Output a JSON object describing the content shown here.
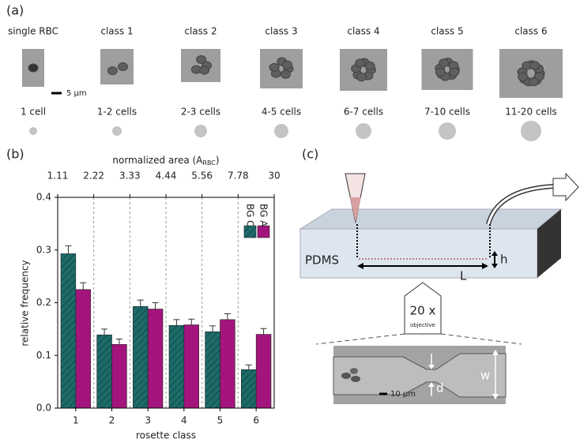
{
  "panel_a": {
    "label": "(a)",
    "scale_bar": "5 µm",
    "classes": [
      {
        "name": "single RBC",
        "cells": "1 cell"
      },
      {
        "name": "class 1",
        "cells": "1-2 cells"
      },
      {
        "name": "class 2",
        "cells": "2-3 cells"
      },
      {
        "name": "class 3",
        "cells": "4-5 cells"
      },
      {
        "name": "class 4",
        "cells": "6-7 cells"
      },
      {
        "name": "class 5",
        "cells": "7-10 cells"
      },
      {
        "name": "class 6",
        "cells": "11-20 cells"
      }
    ]
  },
  "panel_b_label": "(b)",
  "chart_data": {
    "type": "bar",
    "x_label": "rosette class",
    "y_label": "relative frequency",
    "top_axis_label": [
      "normalized area (A",
      "RBC",
      ")"
    ],
    "top_ticks": [
      1.11,
      2.22,
      3.33,
      4.44,
      5.56,
      7.78,
      30
    ],
    "categories": [
      "1",
      "2",
      "3",
      "4",
      "5",
      "6"
    ],
    "series": [
      {
        "name": "BG O",
        "color": "#1d6b69",
        "hatch": true,
        "values": [
          0.293,
          0.139,
          0.193,
          0.157,
          0.145,
          0.073
        ],
        "errors": [
          0.015,
          0.011,
          0.012,
          0.011,
          0.011,
          0.009
        ]
      },
      {
        "name": "BG A",
        "color": "#a3157c",
        "hatch": false,
        "values": [
          0.225,
          0.121,
          0.188,
          0.158,
          0.168,
          0.14
        ],
        "errors": [
          0.013,
          0.01,
          0.012,
          0.011,
          0.011,
          0.011
        ]
      }
    ],
    "ylim": [
      0,
      0.4
    ],
    "yticks": [
      {
        "value": 0,
        "label": "0.0"
      },
      0.1,
      0.2,
      0.3,
      0.4
    ],
    "grid": true,
    "legend": "upper right"
  },
  "panel_c": {
    "label": "(c)",
    "material": "PDMS",
    "length": "L",
    "height": "h",
    "magnification": "20 x",
    "objective": "objective",
    "width": "w",
    "constriction": "d",
    "scale_bar": "10 µm"
  }
}
